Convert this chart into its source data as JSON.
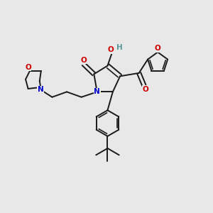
{
  "bg_color": "#e8e8e8",
  "bond_color": "#1a1a1a",
  "atom_colors": {
    "O": "#cc0000",
    "N": "#0000cc",
    "H": "#5a9a9a",
    "C": "#1a1a1a"
  },
  "lw": 1.4,
  "lw2": 1.2
}
